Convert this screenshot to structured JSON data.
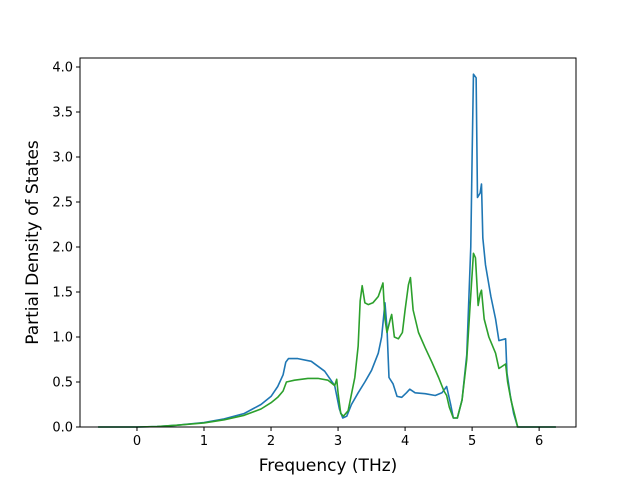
{
  "chart_data": {
    "type": "line",
    "title": "",
    "xlabel": "Frequency (THz)",
    "ylabel": "Partial Density of States",
    "xlim": [
      -0.85,
      6.55
    ],
    "ylim": [
      0.0,
      4.1
    ],
    "xticks": [
      0,
      1,
      2,
      3,
      4,
      5,
      6
    ],
    "yticks": [
      0.0,
      0.5,
      1.0,
      1.5,
      2.0,
      2.5,
      3.0,
      3.5,
      4.0
    ],
    "xtick_labels": [
      "0",
      "1",
      "2",
      "3",
      "4",
      "5",
      "6"
    ],
    "ytick_labels": [
      "0.0",
      "0.5",
      "1.0",
      "1.5",
      "2.0",
      "2.5",
      "3.0",
      "3.5",
      "4.0"
    ],
    "grid": false,
    "legend": "none",
    "series": [
      {
        "color": "#1f77b4",
        "points": [
          [
            -0.58,
            0.0
          ],
          [
            0.0,
            0.0
          ],
          [
            0.3,
            0.005
          ],
          [
            0.6,
            0.02
          ],
          [
            1.0,
            0.05
          ],
          [
            1.3,
            0.09
          ],
          [
            1.6,
            0.15
          ],
          [
            1.85,
            0.25
          ],
          [
            2.0,
            0.34
          ],
          [
            2.1,
            0.45
          ],
          [
            2.18,
            0.58
          ],
          [
            2.22,
            0.72
          ],
          [
            2.26,
            0.76
          ],
          [
            2.4,
            0.76
          ],
          [
            2.6,
            0.73
          ],
          [
            2.8,
            0.62
          ],
          [
            2.95,
            0.46
          ],
          [
            3.02,
            0.2
          ],
          [
            3.07,
            0.1
          ],
          [
            3.13,
            0.12
          ],
          [
            3.2,
            0.25
          ],
          [
            3.3,
            0.38
          ],
          [
            3.4,
            0.5
          ],
          [
            3.5,
            0.63
          ],
          [
            3.6,
            0.82
          ],
          [
            3.65,
            1.0
          ],
          [
            3.7,
            1.38
          ],
          [
            3.73,
            1.1
          ],
          [
            3.76,
            0.55
          ],
          [
            3.82,
            0.48
          ],
          [
            3.88,
            0.34
          ],
          [
            3.95,
            0.33
          ],
          [
            4.02,
            0.38
          ],
          [
            4.07,
            0.42
          ],
          [
            4.15,
            0.38
          ],
          [
            4.3,
            0.37
          ],
          [
            4.45,
            0.35
          ],
          [
            4.55,
            0.38
          ],
          [
            4.62,
            0.45
          ],
          [
            4.68,
            0.25
          ],
          [
            4.72,
            0.1
          ],
          [
            4.78,
            0.1
          ],
          [
            4.85,
            0.3
          ],
          [
            4.92,
            0.8
          ],
          [
            4.98,
            2.0
          ],
          [
            5.0,
            3.0
          ],
          [
            5.02,
            3.92
          ],
          [
            5.06,
            3.88
          ],
          [
            5.08,
            2.55
          ],
          [
            5.12,
            2.6
          ],
          [
            5.14,
            2.7
          ],
          [
            5.16,
            2.1
          ],
          [
            5.2,
            1.8
          ],
          [
            5.28,
            1.45
          ],
          [
            5.35,
            1.2
          ],
          [
            5.4,
            0.96
          ],
          [
            5.5,
            0.98
          ],
          [
            5.52,
            0.6
          ],
          [
            5.57,
            0.35
          ],
          [
            5.62,
            0.15
          ],
          [
            5.68,
            0.0
          ],
          [
            6.25,
            0.0
          ]
        ]
      },
      {
        "color": "#2ca02c",
        "points": [
          [
            -0.58,
            0.0
          ],
          [
            0.0,
            0.0
          ],
          [
            0.3,
            0.005
          ],
          [
            0.6,
            0.02
          ],
          [
            1.0,
            0.045
          ],
          [
            1.3,
            0.08
          ],
          [
            1.6,
            0.13
          ],
          [
            1.85,
            0.2
          ],
          [
            2.0,
            0.27
          ],
          [
            2.1,
            0.33
          ],
          [
            2.18,
            0.4
          ],
          [
            2.23,
            0.5
          ],
          [
            2.35,
            0.52
          ],
          [
            2.55,
            0.54
          ],
          [
            2.7,
            0.54
          ],
          [
            2.85,
            0.52
          ],
          [
            2.95,
            0.46
          ],
          [
            2.98,
            0.53
          ],
          [
            3.0,
            0.38
          ],
          [
            3.04,
            0.15
          ],
          [
            3.08,
            0.12
          ],
          [
            3.15,
            0.18
          ],
          [
            3.25,
            0.55
          ],
          [
            3.3,
            0.9
          ],
          [
            3.33,
            1.4
          ],
          [
            3.36,
            1.57
          ],
          [
            3.4,
            1.38
          ],
          [
            3.45,
            1.36
          ],
          [
            3.52,
            1.38
          ],
          [
            3.6,
            1.45
          ],
          [
            3.67,
            1.6
          ],
          [
            3.7,
            1.2
          ],
          [
            3.73,
            1.05
          ],
          [
            3.78,
            1.2
          ],
          [
            3.8,
            1.25
          ],
          [
            3.84,
            1.0
          ],
          [
            3.9,
            0.98
          ],
          [
            3.96,
            1.05
          ],
          [
            4.0,
            1.3
          ],
          [
            4.05,
            1.58
          ],
          [
            4.08,
            1.66
          ],
          [
            4.12,
            1.3
          ],
          [
            4.2,
            1.05
          ],
          [
            4.3,
            0.88
          ],
          [
            4.4,
            0.72
          ],
          [
            4.5,
            0.55
          ],
          [
            4.58,
            0.4
          ],
          [
            4.62,
            0.35
          ],
          [
            4.66,
            0.22
          ],
          [
            4.72,
            0.1
          ],
          [
            4.78,
            0.1
          ],
          [
            4.85,
            0.3
          ],
          [
            4.92,
            0.75
          ],
          [
            4.97,
            1.35
          ],
          [
            5.02,
            1.93
          ],
          [
            5.05,
            1.88
          ],
          [
            5.09,
            1.35
          ],
          [
            5.12,
            1.48
          ],
          [
            5.14,
            1.52
          ],
          [
            5.18,
            1.2
          ],
          [
            5.25,
            1.0
          ],
          [
            5.35,
            0.82
          ],
          [
            5.4,
            0.65
          ],
          [
            5.5,
            0.7
          ],
          [
            5.53,
            0.5
          ],
          [
            5.58,
            0.3
          ],
          [
            5.63,
            0.15
          ],
          [
            5.68,
            0.0
          ],
          [
            6.25,
            0.0
          ]
        ]
      }
    ]
  }
}
